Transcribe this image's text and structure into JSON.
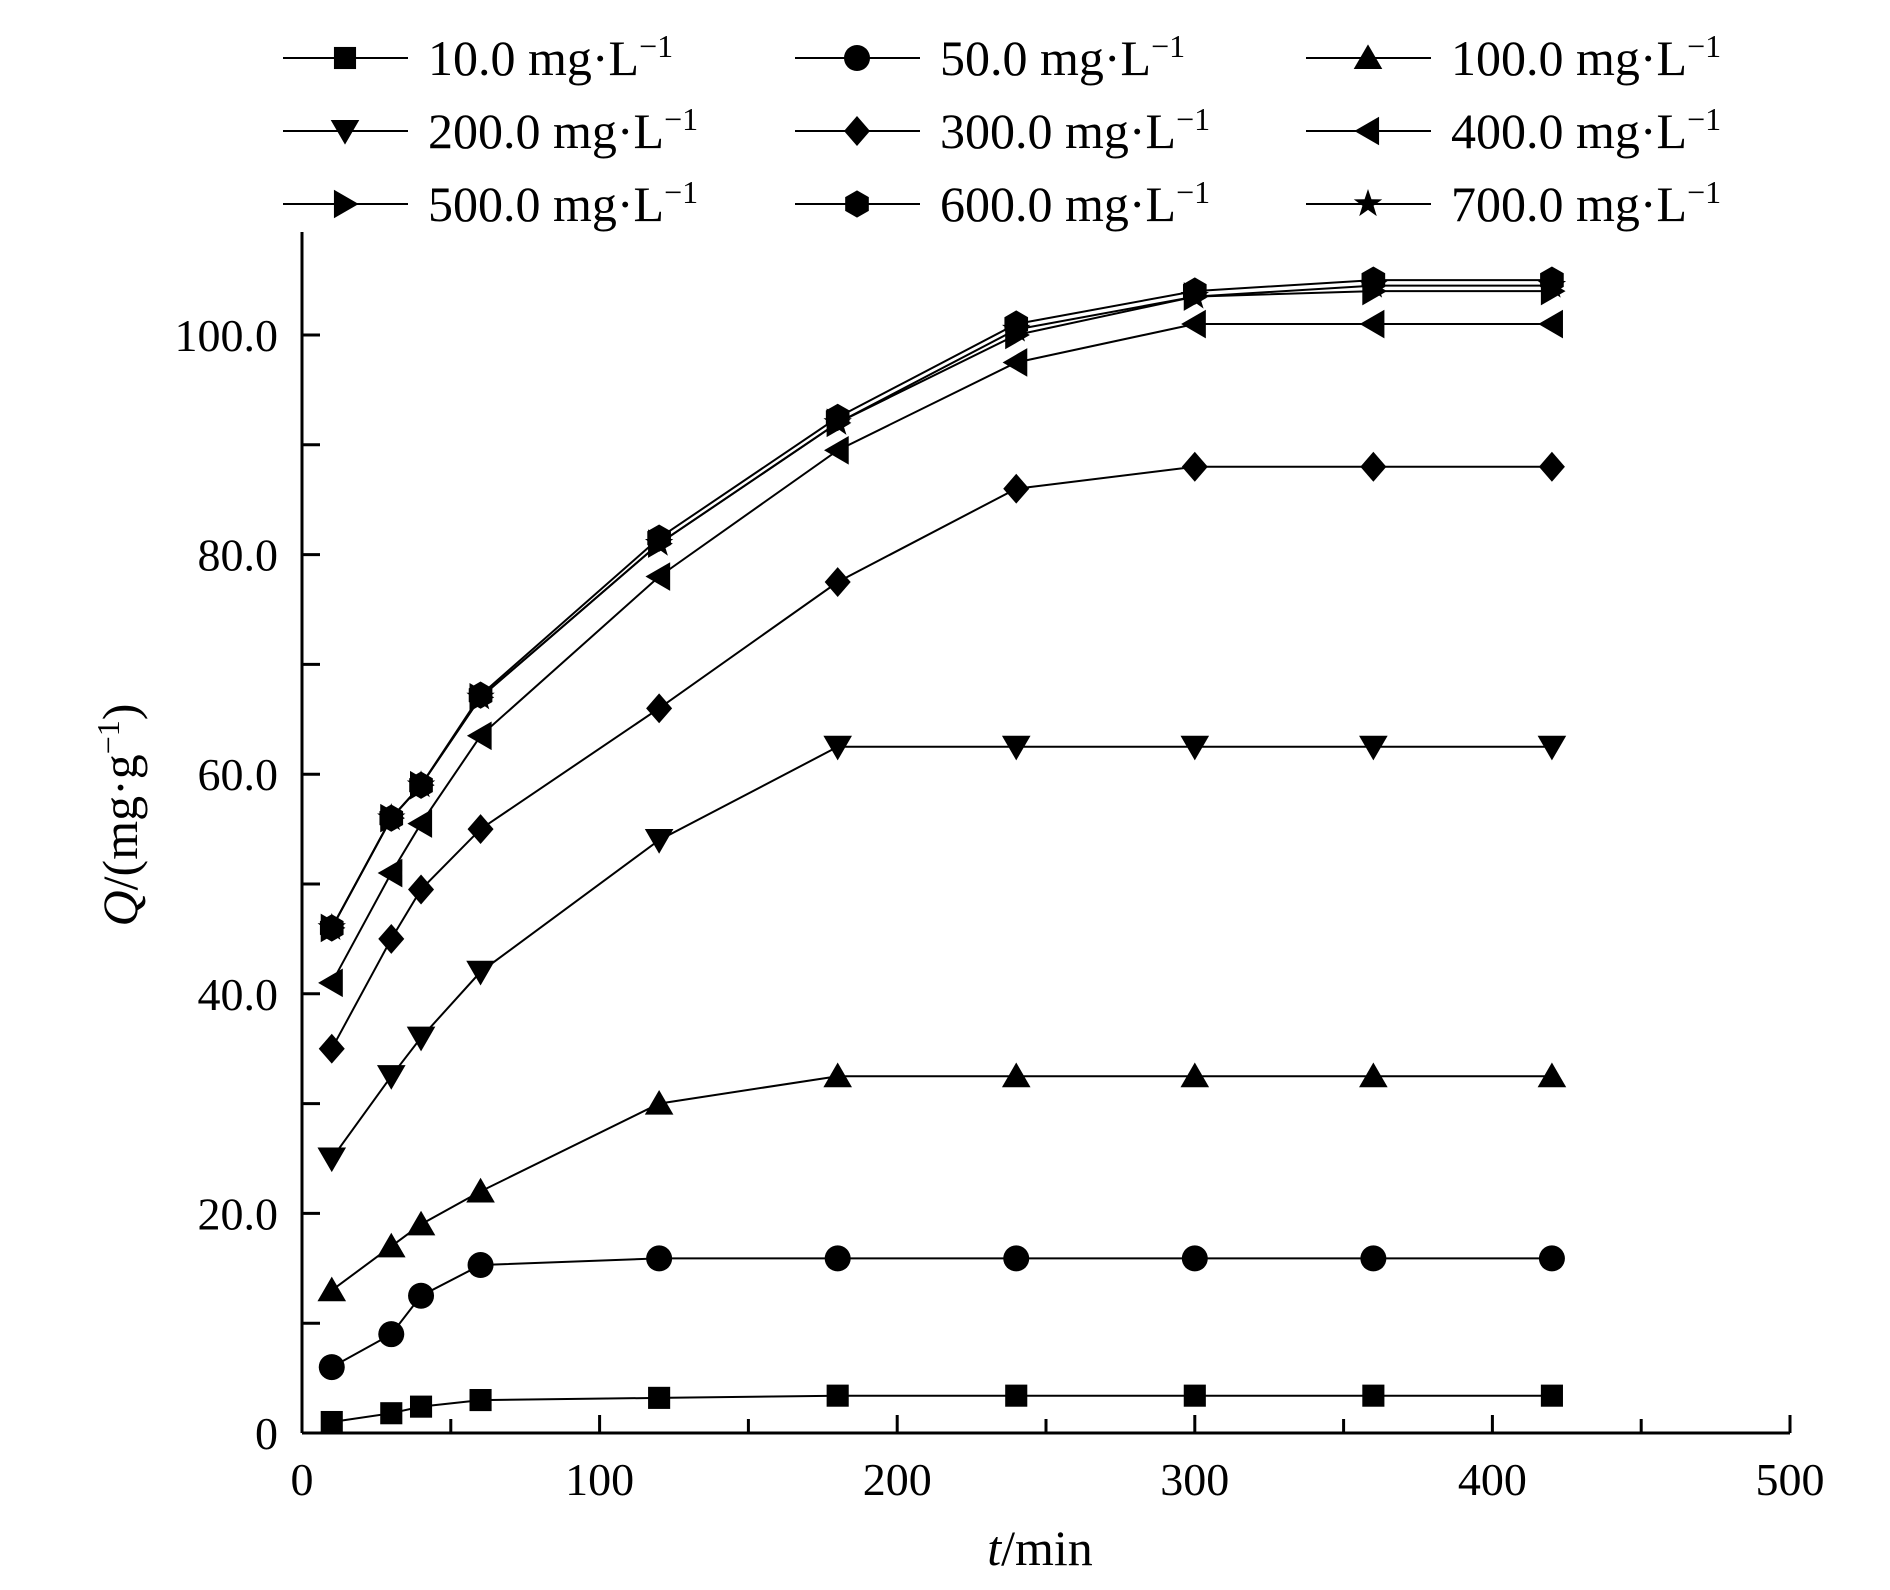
{
  "chart_data": {
    "type": "line",
    "title": "",
    "xlabel_italic": "t",
    "xlabel_rest": "/min",
    "ylabel_italic": "Q",
    "ylabel_rest": "/(mg·g",
    "ylabel_sup": "−1",
    "ylabel_close": ")",
    "xlim": [
      0,
      500
    ],
    "ylim": [
      0,
      108
    ],
    "x_ticks": [
      0,
      100,
      200,
      300,
      400,
      500
    ],
    "x_tick_labels": [
      "0",
      "100",
      "200",
      "300",
      "400",
      "500"
    ],
    "x_minor_ticks": [
      50,
      150,
      250,
      350,
      450
    ],
    "y_ticks": [
      0,
      20,
      40,
      60,
      80,
      100
    ],
    "y_tick_labels": [
      "0",
      "20.0",
      "40.0",
      "60.0",
      "80.0",
      "100.0"
    ],
    "y_minor_ticks": [
      10,
      30,
      50,
      70,
      90
    ],
    "grid": false,
    "legend_position": "top",
    "x": [
      10,
      30,
      40,
      60,
      120,
      180,
      240,
      300,
      360,
      420
    ],
    "series": [
      {
        "name": "10.0 mg·L",
        "sup": "−1",
        "marker": "square",
        "values": [
          1.0,
          1.8,
          2.4,
          3.0,
          3.2,
          3.4,
          3.4,
          3.4,
          3.4,
          3.4
        ]
      },
      {
        "name": "50.0 mg·L",
        "sup": "−1",
        "marker": "circle",
        "values": [
          6.0,
          9.0,
          12.5,
          15.3,
          15.9,
          15.9,
          15.9,
          15.9,
          15.9,
          15.9
        ]
      },
      {
        "name": "100.0 mg·L",
        "sup": "−1",
        "marker": "triangle-up",
        "values": [
          13.0,
          17.0,
          19.0,
          22.0,
          30.0,
          32.5,
          32.5,
          32.5,
          32.5,
          32.5
        ]
      },
      {
        "name": "200.0 mg·L",
        "sup": "−1",
        "marker": "triangle-down",
        "values": [
          25.0,
          32.5,
          36.0,
          42.0,
          54.0,
          62.5,
          62.5,
          62.5,
          62.5,
          62.5
        ]
      },
      {
        "name": "300.0 mg·L",
        "sup": "−1",
        "marker": "diamond",
        "values": [
          35.0,
          45.0,
          49.5,
          55.0,
          66.0,
          77.5,
          86.0,
          88.0,
          88.0,
          88.0
        ]
      },
      {
        "name": "400.0 mg·L",
        "sup": "−1",
        "marker": "triangle-left",
        "values": [
          41.0,
          51.0,
          55.5,
          63.5,
          78.0,
          89.5,
          97.5,
          101.0,
          101.0,
          101.0
        ]
      },
      {
        "name": "500.0 mg·L",
        "sup": "−1",
        "marker": "triangle-right",
        "values": [
          46.0,
          56.0,
          59.0,
          67.0,
          81.0,
          92.0,
          100.0,
          103.5,
          104.0,
          104.0
        ]
      },
      {
        "name": "600.0 mg·L",
        "sup": "−1",
        "marker": "hexagon",
        "values": [
          46.0,
          56.0,
          59.0,
          67.2,
          81.5,
          92.5,
          101.0,
          104.0,
          105.0,
          105.0
        ]
      },
      {
        "name": "700.0 mg·L",
        "sup": "−1",
        "marker": "star",
        "values": [
          46.0,
          56.0,
          59.0,
          67.0,
          81.0,
          92.0,
          100.5,
          103.5,
          104.5,
          104.5
        ]
      }
    ]
  },
  "colors": {
    "ink": "#000000",
    "background": "#ffffff"
  }
}
